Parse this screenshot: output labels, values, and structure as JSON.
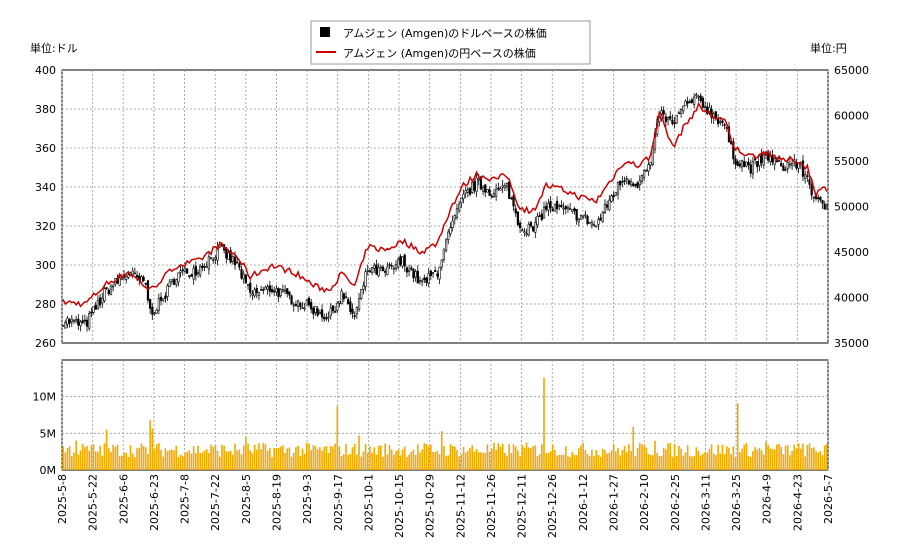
{
  "chart_data": [
    {
      "type": "candlestick+line",
      "legend": [
        {
          "label": "アムジェン (Amgen)のドルベースの株価",
          "color": "#000000",
          "symbol": "square"
        },
        {
          "label": "アムジェン (Amgen)の円ベースの株価",
          "color": "#cc0000",
          "symbol": "line"
        }
      ],
      "left_unit": "単位:ドル",
      "right_unit": "単位:円",
      "y_left": {
        "min": 260,
        "max": 400,
        "ticks": [
          "260",
          "280",
          "300",
          "320",
          "340",
          "360",
          "380",
          "400"
        ]
      },
      "y_right": {
        "min": 35000,
        "max": 65000,
        "ticks": [
          "35000",
          "40000",
          "45000",
          "50000",
          "55000",
          "60000",
          "65000"
        ]
      },
      "x_labels": [
        "2025-5-8",
        "2025-5-22",
        "2025-6-6",
        "2025-6-23",
        "2025-7-8",
        "2025-7-22",
        "2025-8-5",
        "2025-8-19",
        "2025-9-3",
        "2025-9-17",
        "2025-10-1",
        "2025-10-15",
        "2025-10-29",
        "2025-11-12",
        "2025-11-26",
        "2025-12-11",
        "2025-12-26",
        "2026-1-12",
        "2026-1-27",
        "2026-2-10",
        "2026-2-25",
        "2026-3-11",
        "2026-3-25",
        "2026-4-9",
        "2026-4-23",
        "2026-5-7"
      ],
      "grid": true,
      "usd_close_anchors": [
        {
          "d": 0,
          "v": 272
        },
        {
          "d": 10,
          "v": 269
        },
        {
          "d": 20,
          "v": 287
        },
        {
          "d": 30,
          "v": 296
        },
        {
          "d": 38,
          "v": 290
        },
        {
          "d": 40,
          "v": 276
        },
        {
          "d": 45,
          "v": 281
        },
        {
          "d": 52,
          "v": 295
        },
        {
          "d": 62,
          "v": 298
        },
        {
          "d": 72,
          "v": 308
        },
        {
          "d": 80,
          "v": 300
        },
        {
          "d": 86,
          "v": 285
        },
        {
          "d": 96,
          "v": 288
        },
        {
          "d": 106,
          "v": 282
        },
        {
          "d": 116,
          "v": 277
        },
        {
          "d": 122,
          "v": 273
        },
        {
          "d": 128,
          "v": 285
        },
        {
          "d": 134,
          "v": 273
        },
        {
          "d": 140,
          "v": 298
        },
        {
          "d": 148,
          "v": 296
        },
        {
          "d": 156,
          "v": 302
        },
        {
          "d": 165,
          "v": 290
        },
        {
          "d": 172,
          "v": 297
        },
        {
          "d": 178,
          "v": 318
        },
        {
          "d": 184,
          "v": 335
        },
        {
          "d": 190,
          "v": 342
        },
        {
          "d": 198,
          "v": 337
        },
        {
          "d": 204,
          "v": 340
        },
        {
          "d": 210,
          "v": 320
        },
        {
          "d": 216,
          "v": 318
        },
        {
          "d": 222,
          "v": 330
        },
        {
          "d": 230,
          "v": 328
        },
        {
          "d": 238,
          "v": 325
        },
        {
          "d": 245,
          "v": 320
        },
        {
          "d": 252,
          "v": 335
        },
        {
          "d": 258,
          "v": 345
        },
        {
          "d": 264,
          "v": 342
        },
        {
          "d": 270,
          "v": 352
        },
        {
          "d": 274,
          "v": 378
        },
        {
          "d": 280,
          "v": 372
        },
        {
          "d": 286,
          "v": 382
        },
        {
          "d": 292,
          "v": 385
        },
        {
          "d": 298,
          "v": 378
        },
        {
          "d": 304,
          "v": 372
        },
        {
          "d": 308,
          "v": 355
        },
        {
          "d": 316,
          "v": 350
        },
        {
          "d": 324,
          "v": 356
        },
        {
          "d": 330,
          "v": 350
        },
        {
          "d": 336,
          "v": 353
        },
        {
          "d": 342,
          "v": 345
        },
        {
          "d": 346,
          "v": 332
        },
        {
          "d": 350,
          "v": 330
        }
      ],
      "jpy_close_anchors": [
        {
          "d": 0,
          "v": 39500
        },
        {
          "d": 10,
          "v": 39300
        },
        {
          "d": 20,
          "v": 41500
        },
        {
          "d": 30,
          "v": 42800
        },
        {
          "d": 40,
          "v": 40800
        },
        {
          "d": 52,
          "v": 43500
        },
        {
          "d": 62,
          "v": 44000
        },
        {
          "d": 72,
          "v": 45800
        },
        {
          "d": 80,
          "v": 44500
        },
        {
          "d": 86,
          "v": 42300
        },
        {
          "d": 96,
          "v": 43500
        },
        {
          "d": 106,
          "v": 42800
        },
        {
          "d": 116,
          "v": 41200
        },
        {
          "d": 122,
          "v": 40800
        },
        {
          "d": 128,
          "v": 42600
        },
        {
          "d": 134,
          "v": 41200
        },
        {
          "d": 140,
          "v": 45600
        },
        {
          "d": 148,
          "v": 45200
        },
        {
          "d": 156,
          "v": 46200
        },
        {
          "d": 165,
          "v": 45000
        },
        {
          "d": 172,
          "v": 46000
        },
        {
          "d": 178,
          "v": 49800
        },
        {
          "d": 184,
          "v": 52300
        },
        {
          "d": 190,
          "v": 53500
        },
        {
          "d": 198,
          "v": 53000
        },
        {
          "d": 204,
          "v": 53400
        },
        {
          "d": 210,
          "v": 49800
        },
        {
          "d": 216,
          "v": 49500
        },
        {
          "d": 222,
          "v": 52300
        },
        {
          "d": 230,
          "v": 51800
        },
        {
          "d": 238,
          "v": 51000
        },
        {
          "d": 245,
          "v": 50600
        },
        {
          "d": 252,
          "v": 53000
        },
        {
          "d": 258,
          "v": 55000
        },
        {
          "d": 264,
          "v": 54500
        },
        {
          "d": 270,
          "v": 55500
        },
        {
          "d": 274,
          "v": 60500
        },
        {
          "d": 280,
          "v": 56500
        },
        {
          "d": 286,
          "v": 59000
        },
        {
          "d": 292,
          "v": 61000
        },
        {
          "d": 298,
          "v": 60000
        },
        {
          "d": 304,
          "v": 59500
        },
        {
          "d": 308,
          "v": 56500
        },
        {
          "d": 316,
          "v": 55500
        },
        {
          "d": 324,
          "v": 56000
        },
        {
          "d": 330,
          "v": 55000
        },
        {
          "d": 336,
          "v": 55200
        },
        {
          "d": 342,
          "v": 54300
        },
        {
          "d": 346,
          "v": 51500
        },
        {
          "d": 350,
          "v": 52000
        }
      ]
    },
    {
      "type": "bar",
      "name": "volume",
      "y": {
        "min": 0,
        "max": 15000000,
        "ticks": [
          "0M",
          "5M",
          "10M"
        ]
      },
      "color": "#f2a900",
      "baseline_millions": 2.5,
      "spikes_millions": [
        {
          "d": 6,
          "v": 4.0
        },
        {
          "d": 20,
          "v": 5.5
        },
        {
          "d": 40,
          "v": 6.8
        },
        {
          "d": 41,
          "v": 5.6
        },
        {
          "d": 84,
          "v": 4.5
        },
        {
          "d": 126,
          "v": 8.7
        },
        {
          "d": 136,
          "v": 4.7
        },
        {
          "d": 174,
          "v": 5.3
        },
        {
          "d": 220,
          "v": 3.5
        },
        {
          "d": 221,
          "v": 12.6
        },
        {
          "d": 262,
          "v": 5.9
        },
        {
          "d": 272,
          "v": 4.0
        },
        {
          "d": 310,
          "v": 9.1
        },
        {
          "d": 323,
          "v": 3.9
        },
        {
          "d": 340,
          "v": 3.6
        }
      ]
    }
  ]
}
